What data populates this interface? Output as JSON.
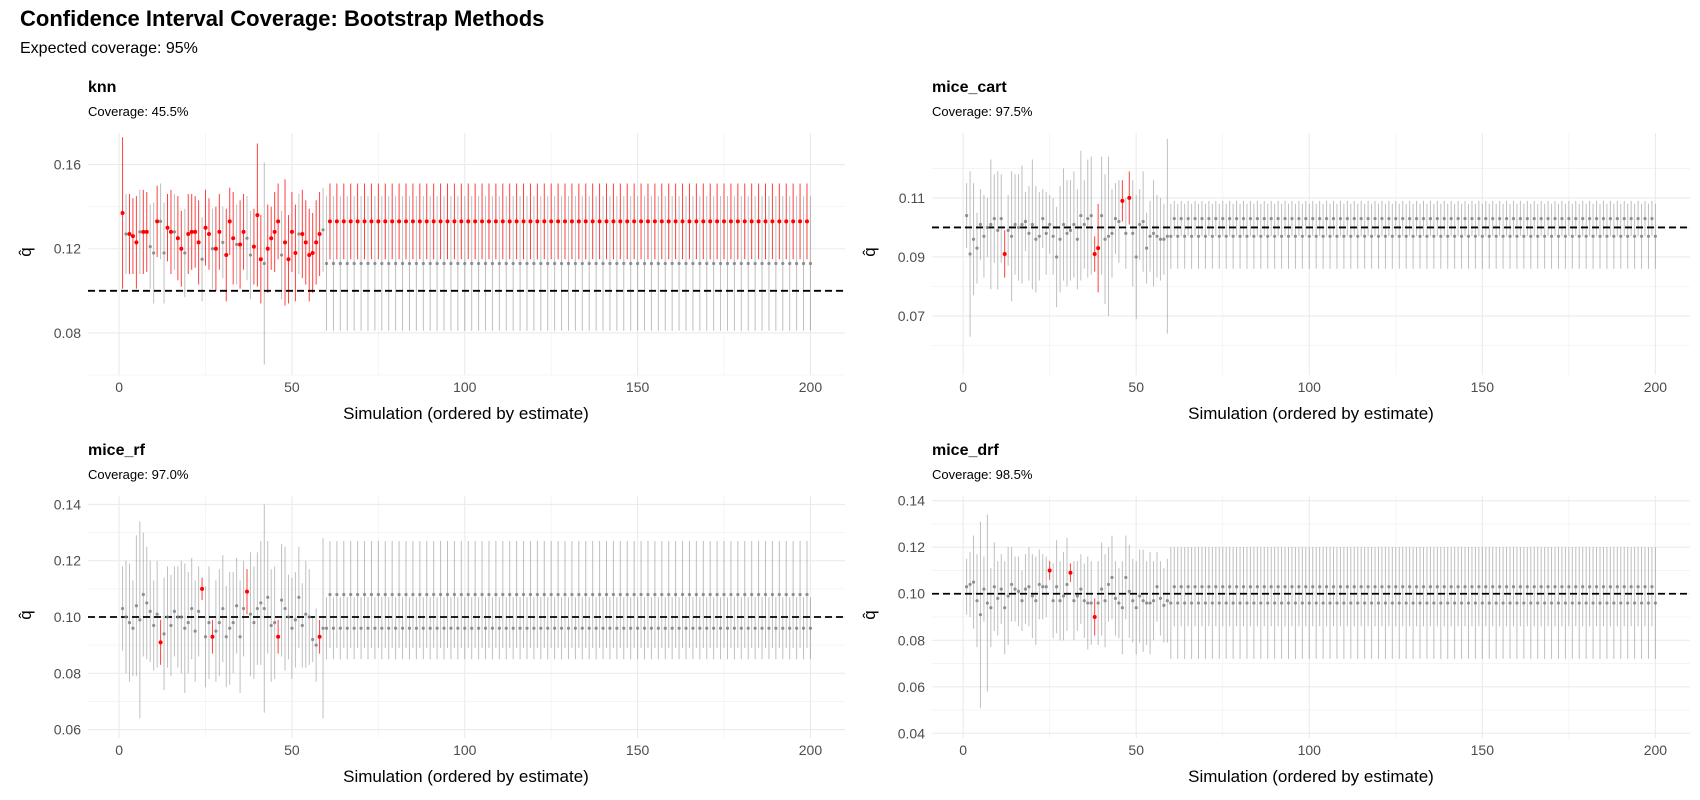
{
  "title": "Confidence Interval Coverage: Bootstrap Methods",
  "subtitle": "Expected coverage: 95%",
  "colors": {
    "covered": "#808080",
    "missed": "#ff0000",
    "reference": "#000000",
    "grid": "#ebebeb"
  },
  "chart_data": [
    {
      "type": "scatter",
      "panel_title": "knn",
      "panel_subtitle": "Coverage: 45.5%",
      "xlabel": "Simulation (ordered by estimate)",
      "ylabel": "q̂",
      "true_value": 0.1,
      "xlim": [
        -9,
        210
      ],
      "ylim": [
        0.06,
        0.175
      ],
      "x_ticks": [
        0,
        50,
        100,
        150,
        200
      ],
      "y_ticks": [
        0.08,
        0.12,
        0.16
      ],
      "n": 200,
      "early_count": 59,
      "early_estimates": [
        0.137,
        0.127,
        0.127,
        0.126,
        0.123,
        0.128,
        0.128,
        0.128,
        0.121,
        0.118,
        0.133,
        0.133,
        0.118,
        0.13,
        0.128,
        0.128,
        0.125,
        0.12,
        0.118,
        0.127,
        0.128,
        0.128,
        0.123,
        0.115,
        0.13,
        0.127,
        0.12,
        0.12,
        0.128,
        0.123,
        0.117,
        0.133,
        0.125,
        0.122,
        0.122,
        0.128,
        0.125,
        0.117,
        0.121,
        0.136,
        0.115,
        0.113,
        0.12,
        0.125,
        0.128,
        0.133,
        0.117,
        0.123,
        0.115,
        0.128,
        0.118,
        0.127,
        0.127,
        0.123,
        0.117,
        0.118,
        0.123,
        0.127,
        0.129
      ],
      "early_half_widths": [
        0.036,
        0.019,
        0.019,
        0.018,
        0.022,
        0.02,
        0.02,
        0.019,
        0.02,
        0.024,
        0.017,
        0.018,
        0.024,
        0.016,
        0.02,
        0.018,
        0.02,
        0.018,
        0.021,
        0.019,
        0.018,
        0.017,
        0.02,
        0.02,
        0.018,
        0.017,
        0.019,
        0.02,
        0.018,
        0.017,
        0.022,
        0.016,
        0.022,
        0.019,
        0.021,
        0.018,
        0.02,
        0.021,
        0.018,
        0.034,
        0.021,
        0.048,
        0.021,
        0.015,
        0.019,
        0.018,
        0.021,
        0.03,
        0.021,
        0.019,
        0.023,
        0.019,
        0.021,
        0.02,
        0.022,
        0.019,
        0.02,
        0.02,
        0.02
      ],
      "early_missed": [
        1,
        0,
        1,
        1,
        1,
        0,
        1,
        1,
        0,
        0,
        1,
        0,
        0,
        1,
        1,
        0,
        1,
        1,
        0,
        1,
        1,
        1,
        1,
        0,
        1,
        1,
        0,
        1,
        1,
        0,
        1,
        1,
        1,
        0,
        1,
        1,
        0,
        0,
        1,
        1,
        1,
        0,
        1,
        1,
        1,
        1,
        0,
        1,
        1,
        1,
        1,
        0,
        1,
        1,
        1,
        1,
        1,
        1,
        0
      ],
      "late_pattern": [
        {
          "estimate": 0.113,
          "half_width": 0.032,
          "missed": false
        },
        {
          "estimate": 0.133,
          "half_width": 0.018,
          "missed": true
        }
      ]
    },
    {
      "type": "scatter",
      "panel_title": "mice_cart",
      "panel_subtitle": "Coverage: 97.5%",
      "xlabel": "Simulation (ordered by estimate)",
      "ylabel": "q̂",
      "true_value": 0.1,
      "xlim": [
        -9,
        210
      ],
      "ylim": [
        0.05,
        0.132
      ],
      "x_ticks": [
        0,
        50,
        100,
        150,
        200
      ],
      "y_ticks": [
        0.07,
        0.09,
        0.11
      ],
      "n": 200,
      "early_count": 59,
      "early_estimates": [
        0.104,
        0.091,
        0.096,
        0.093,
        0.101,
        0.097,
        0.1,
        0.101,
        0.103,
        0.099,
        0.103,
        0.091,
        0.099,
        0.097,
        0.101,
        0.1,
        0.101,
        0.102,
        0.098,
        0.101,
        0.096,
        0.097,
        0.103,
        0.098,
        0.101,
        0.097,
        0.09,
        0.096,
        0.101,
        0.098,
        0.099,
        0.101,
        0.096,
        0.104,
        0.101,
        0.103,
        0.104,
        0.091,
        0.093,
        0.104,
        0.096,
        0.097,
        0.098,
        0.103,
        0.102,
        0.109,
        0.098,
        0.11,
        0.098,
        0.09,
        0.101,
        0.102,
        0.093,
        0.097,
        0.098,
        0.097,
        0.096,
        0.096,
        0.097
      ],
      "early_half_widths": [
        0.011,
        0.028,
        0.019,
        0.012,
        0.012,
        0.014,
        0.01,
        0.022,
        0.015,
        0.02,
        0.015,
        0.008,
        0.012,
        0.022,
        0.017,
        0.018,
        0.02,
        0.01,
        0.016,
        0.022,
        0.018,
        0.015,
        0.01,
        0.014,
        0.01,
        0.013,
        0.017,
        0.018,
        0.019,
        0.018,
        0.017,
        0.018,
        0.017,
        0.022,
        0.015,
        0.02,
        0.02,
        0.006,
        0.015,
        0.02,
        0.022,
        0.027,
        0.015,
        0.012,
        0.014,
        0.007,
        0.012,
        0.009,
        0.018,
        0.021,
        0.012,
        0.017,
        0.012,
        0.012,
        0.018,
        0.014,
        0.014,
        0.012,
        0.033
      ],
      "early_missed": [
        0,
        0,
        0,
        0,
        0,
        0,
        0,
        0,
        0,
        0,
        0,
        1,
        0,
        0,
        0,
        0,
        0,
        0,
        0,
        0,
        0,
        0,
        0,
        0,
        0,
        0,
        0,
        0,
        0,
        0,
        0,
        0,
        0,
        0,
        0,
        0,
        0,
        1,
        1,
        0,
        0,
        0,
        0,
        0,
        0,
        1,
        0,
        1,
        0,
        0,
        0,
        0,
        0,
        0,
        0,
        0,
        0,
        0,
        0
      ],
      "late_pattern": [
        {
          "estimate": 0.097,
          "half_width": 0.011,
          "missed": false
        },
        {
          "estimate": 0.103,
          "half_width": 0.006,
          "missed": false
        }
      ]
    },
    {
      "type": "scatter",
      "panel_title": "mice_rf",
      "panel_subtitle": "Coverage: 97.0%",
      "xlabel": "Simulation (ordered by estimate)",
      "ylabel": "q̂",
      "true_value": 0.1,
      "xlim": [
        -9,
        210
      ],
      "ylim": [
        0.057,
        0.143
      ],
      "x_ticks": [
        0,
        50,
        100,
        150,
        200
      ],
      "y_ticks": [
        0.06,
        0.08,
        0.1,
        0.12,
        0.14
      ],
      "n": 200,
      "early_count": 59,
      "early_estimates": [
        0.103,
        0.1,
        0.098,
        0.096,
        0.104,
        0.099,
        0.108,
        0.105,
        0.102,
        0.097,
        0.101,
        0.091,
        0.094,
        0.1,
        0.097,
        0.102,
        0.1,
        0.1,
        0.096,
        0.098,
        0.103,
        0.095,
        0.102,
        0.11,
        0.093,
        0.098,
        0.093,
        0.095,
        0.098,
        0.103,
        0.093,
        0.096,
        0.098,
        0.104,
        0.093,
        0.103,
        0.109,
        0.101,
        0.098,
        0.103,
        0.105,
        0.103,
        0.107,
        0.097,
        0.098,
        0.093,
        0.106,
        0.103,
        0.1,
        0.096,
        0.099,
        0.107,
        0.097,
        0.101,
        0.1,
        0.092,
        0.09,
        0.093,
        0.096
      ],
      "early_half_widths": [
        0.015,
        0.02,
        0.021,
        0.017,
        0.025,
        0.035,
        0.022,
        0.02,
        0.018,
        0.016,
        0.019,
        0.008,
        0.02,
        0.018,
        0.018,
        0.016,
        0.018,
        0.02,
        0.023,
        0.018,
        0.018,
        0.018,
        0.016,
        0.004,
        0.018,
        0.02,
        0.006,
        0.018,
        0.019,
        0.019,
        0.018,
        0.02,
        0.018,
        0.017,
        0.02,
        0.017,
        0.008,
        0.022,
        0.02,
        0.02,
        0.022,
        0.037,
        0.02,
        0.02,
        0.02,
        0.006,
        0.02,
        0.022,
        0.015,
        0.018,
        0.017,
        0.018,
        0.015,
        0.019,
        0.017,
        0.008,
        0.013,
        0.006,
        0.032
      ],
      "early_missed": [
        0,
        0,
        0,
        0,
        0,
        0,
        0,
        0,
        0,
        0,
        0,
        1,
        0,
        0,
        0,
        0,
        0,
        0,
        0,
        0,
        0,
        0,
        0,
        1,
        0,
        0,
        1,
        0,
        0,
        0,
        0,
        0,
        0,
        0,
        0,
        0,
        1,
        0,
        0,
        0,
        0,
        0,
        0,
        0,
        0,
        1,
        0,
        0,
        0,
        0,
        0,
        0,
        0,
        0,
        0,
        0,
        0,
        1,
        0
      ],
      "late_pattern": [
        {
          "estimate": 0.096,
          "half_width": 0.011,
          "missed": false
        },
        {
          "estimate": 0.108,
          "half_width": 0.019,
          "missed": false
        }
      ]
    },
    {
      "type": "scatter",
      "panel_title": "mice_drf",
      "panel_subtitle": "Coverage: 98.5%",
      "xlabel": "Simulation (ordered by estimate)",
      "ylabel": "q̂",
      "true_value": 0.1,
      "xlim": [
        -9,
        210
      ],
      "ylim": [
        0.038,
        0.142
      ],
      "x_ticks": [
        0,
        50,
        100,
        150,
        200
      ],
      "y_ticks": [
        0.04,
        0.06,
        0.08,
        0.1,
        0.12,
        0.14
      ],
      "n": 200,
      "early_count": 59,
      "early_estimates": [
        0.103,
        0.104,
        0.105,
        0.097,
        0.091,
        0.102,
        0.096,
        0.094,
        0.103,
        0.098,
        0.102,
        0.094,
        0.099,
        0.104,
        0.102,
        0.101,
        0.097,
        0.102,
        0.103,
        0.099,
        0.097,
        0.104,
        0.103,
        0.103,
        0.11,
        0.097,
        0.103,
        0.097,
        0.099,
        0.104,
        0.109,
        0.097,
        0.099,
        0.102,
        0.097,
        0.096,
        0.096,
        0.09,
        0.096,
        0.102,
        0.097,
        0.104,
        0.107,
        0.098,
        0.096,
        0.094,
        0.107,
        0.101,
        0.097,
        0.094,
        0.099,
        0.097,
        0.096,
        0.096,
        0.097,
        0.103,
        0.098,
        0.095,
        0.097
      ],
      "early_half_widths": [
        0.012,
        0.014,
        0.02,
        0.02,
        0.04,
        0.014,
        0.038,
        0.017,
        0.019,
        0.016,
        0.015,
        0.02,
        0.021,
        0.016,
        0.014,
        0.015,
        0.013,
        0.015,
        0.017,
        0.018,
        0.019,
        0.015,
        0.014,
        0.013,
        0.004,
        0.016,
        0.02,
        0.017,
        0.019,
        0.02,
        0.004,
        0.017,
        0.015,
        0.015,
        0.016,
        0.02,
        0.018,
        0.008,
        0.018,
        0.02,
        0.02,
        0.016,
        0.018,
        0.016,
        0.015,
        0.02,
        0.018,
        0.02,
        0.018,
        0.02,
        0.02,
        0.022,
        0.018,
        0.022,
        0.017,
        0.015,
        0.016,
        0.016,
        0.018
      ],
      "early_missed": [
        0,
        0,
        0,
        0,
        0,
        0,
        0,
        0,
        0,
        0,
        0,
        0,
        0,
        0,
        0,
        0,
        0,
        0,
        0,
        0,
        0,
        0,
        0,
        0,
        1,
        0,
        0,
        0,
        0,
        0,
        1,
        0,
        0,
        0,
        0,
        0,
        0,
        1,
        0,
        0,
        0,
        0,
        0,
        0,
        0,
        0,
        0,
        0,
        0,
        0,
        0,
        0,
        0,
        0,
        0,
        0,
        0,
        0,
        0
      ],
      "late_pattern": [
        {
          "estimate": 0.096,
          "half_width": 0.024,
          "missed": false
        },
        {
          "estimate": 0.103,
          "half_width": 0.017,
          "missed": false
        }
      ]
    }
  ]
}
